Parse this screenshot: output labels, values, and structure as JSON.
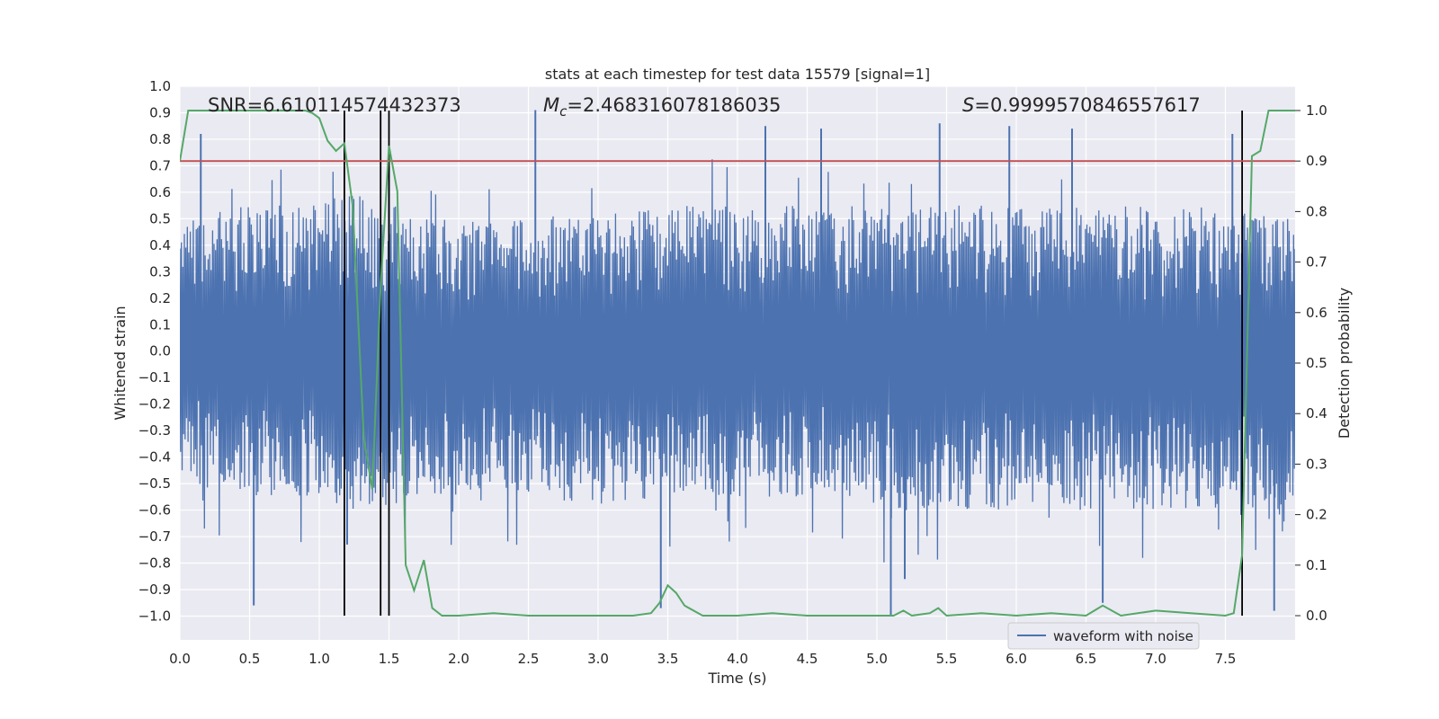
{
  "chart_data": {
    "type": "line",
    "title": "stats at each timestep for test data 15579 [signal=1]",
    "xlabel": "Time (s)",
    "ylabel": "Whitened strain",
    "y2label": "Detection probability",
    "xlim": [
      0.0,
      8.0
    ],
    "ylim": [
      -1.09,
      1.0
    ],
    "y2lim": [
      -0.048,
      1.048
    ],
    "xticks": [
      "0.0",
      "0.5",
      "1.0",
      "1.5",
      "2.0",
      "2.5",
      "3.0",
      "3.5",
      "4.0",
      "4.5",
      "5.0",
      "5.5",
      "6.0",
      "6.5",
      "7.0",
      "7.5"
    ],
    "yticks": [
      "1.0",
      "0.9",
      "0.8",
      "0.7",
      "0.6",
      "0.5",
      "0.4",
      "0.3",
      "0.2",
      "0.1",
      "0.0",
      "−0.1",
      "−0.2",
      "−0.3",
      "−0.4",
      "−0.5",
      "−0.6",
      "−0.7",
      "−0.8",
      "−0.9",
      "−1.0"
    ],
    "y2ticks": [
      "1.0",
      "0.9",
      "0.8",
      "0.7",
      "0.6",
      "0.5",
      "0.4",
      "0.3",
      "0.2",
      "0.1",
      "0.0"
    ],
    "grid": true,
    "legend_position": "lower-right",
    "annotations": {
      "snr": "SNR=6.610114574432373",
      "mc_symbol": "M",
      "mc_sub": "c",
      "mc_value": "=2.468316078186035",
      "s_symbol": "S",
      "s_value": "=0.9999570846557617"
    },
    "threshold": {
      "value_y2": 0.9,
      "color": "#c44e52"
    },
    "vertical_lines_x": [
      1.18,
      1.44,
      1.5,
      7.62
    ],
    "series": [
      {
        "name": "waveform with noise",
        "axis": "left",
        "color": "#4c72b0",
        "envelope": {
          "x": [
            0.0,
            0.5,
            1.0,
            1.2,
            1.4,
            1.5,
            1.6,
            2.0,
            2.5,
            3.0,
            3.5,
            4.0,
            4.5,
            5.0,
            5.5,
            6.0,
            6.5,
            7.0,
            7.5,
            7.9,
            8.0
          ],
          "typ_max": [
            0.5,
            0.55,
            0.55,
            0.6,
            0.58,
            0.6,
            0.5,
            0.5,
            0.52,
            0.55,
            0.55,
            0.55,
            0.55,
            0.55,
            0.55,
            0.55,
            0.55,
            0.55,
            0.55,
            0.5,
            0.5
          ],
          "typ_min": [
            -0.5,
            -0.55,
            -0.55,
            -0.6,
            -0.6,
            -0.62,
            -0.55,
            -0.55,
            -0.55,
            -0.58,
            -0.55,
            -0.55,
            -0.55,
            -0.6,
            -0.6,
            -0.6,
            -0.6,
            -0.6,
            -0.6,
            -0.7,
            -0.6
          ],
          "peaks_x": [
            0.15,
            0.53,
            1.2,
            1.5,
            2.55,
            3.45,
            4.2,
            4.6,
            5.1,
            5.2,
            5.45,
            5.95,
            6.4,
            6.62,
            7.55,
            7.85
          ],
          "peaks_y": [
            0.82,
            -0.96,
            -0.73,
            0.73,
            0.91,
            -0.97,
            0.85,
            0.84,
            -1.0,
            -0.86,
            0.86,
            0.85,
            0.84,
            -0.95,
            0.82,
            -0.98
          ]
        }
      },
      {
        "name": "",
        "axis": "right",
        "color": "#55a868",
        "x": [
          0.0,
          0.06,
          0.2,
          0.5,
          0.8,
          0.9,
          0.95,
          1.0,
          1.06,
          1.12,
          1.18,
          1.24,
          1.32,
          1.38,
          1.44,
          1.5,
          1.56,
          1.62,
          1.68,
          1.75,
          1.81,
          1.88,
          2.0,
          2.25,
          2.5,
          3.0,
          3.25,
          3.38,
          3.44,
          3.5,
          3.56,
          3.62,
          3.75,
          4.0,
          4.25,
          4.5,
          4.75,
          5.0,
          5.12,
          5.19,
          5.25,
          5.38,
          5.44,
          5.5,
          5.75,
          6.0,
          6.25,
          6.5,
          6.56,
          6.62,
          6.75,
          7.0,
          7.25,
          7.5,
          7.56,
          7.62,
          7.69,
          7.75,
          7.81,
          7.88,
          8.0
        ],
        "y": [
          0.9,
          1.0,
          1.0,
          1.0,
          1.0,
          1.0,
          0.995,
          0.985,
          0.94,
          0.92,
          0.935,
          0.81,
          0.35,
          0.25,
          0.65,
          0.93,
          0.84,
          0.1,
          0.05,
          0.11,
          0.015,
          0.0,
          0.0,
          0.005,
          0.0,
          0.0,
          0.0,
          0.005,
          0.025,
          0.06,
          0.045,
          0.02,
          0.0,
          0.0,
          0.005,
          0.0,
          0.0,
          0.0,
          0.0,
          0.01,
          0.0,
          0.005,
          0.015,
          0.0,
          0.005,
          0.0,
          0.005,
          0.0,
          0.01,
          0.02,
          0.0,
          0.01,
          0.005,
          0.0,
          0.005,
          0.12,
          0.91,
          0.92,
          1.0,
          1.0,
          1.0
        ]
      }
    ]
  }
}
